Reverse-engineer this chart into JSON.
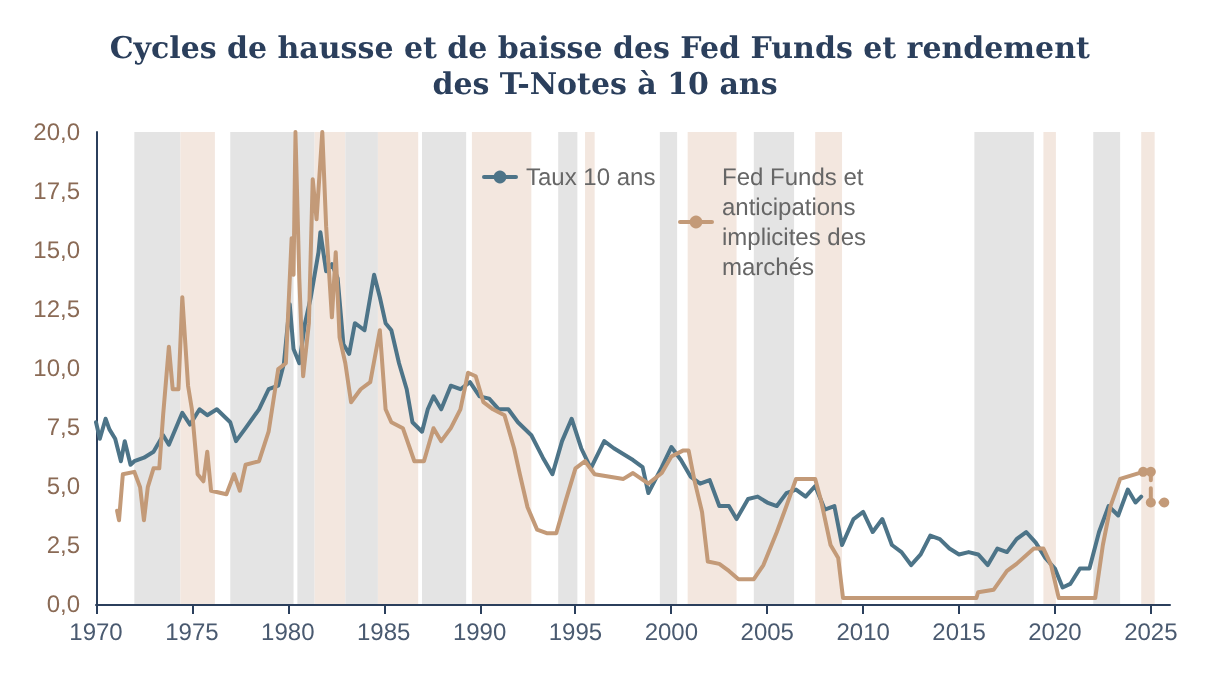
{
  "chart_data": {
    "type": "line",
    "title": "Cycles de hausse et de baisse des Fed Funds et rendement des T-Notes à 10 ans",
    "xlim": [
      1970,
      2026
    ],
    "xticks": [
      1970,
      1975,
      1980,
      1985,
      1990,
      1995,
      2000,
      2005,
      2010,
      2015,
      2020,
      2025
    ],
    "ylim": [
      0,
      20
    ],
    "yticks": [
      {
        "value": 0,
        "label": "0,0"
      },
      {
        "value": 2.5,
        "label": "2,5"
      },
      {
        "value": 5,
        "label": "5,0"
      },
      {
        "value": 7.5,
        "label": "7,5"
      },
      {
        "value": 10,
        "label": "10,0"
      },
      {
        "value": 12.5,
        "label": "12,5"
      },
      {
        "value": 15,
        "label": "15,0"
      },
      {
        "value": 17.5,
        "label": "17,5"
      },
      {
        "value": 20,
        "label": "20,0"
      }
    ],
    "grid": false,
    "legend": "top right",
    "marker": "none",
    "line_style": "solid",
    "bands": [
      {
        "axis": "x",
        "from": 1972.0,
        "to": 1974.4,
        "color": "#e4e4e4"
      },
      {
        "axis": "x",
        "from": 1974.4,
        "to": 1976.2,
        "color": "#f3e7df"
      },
      {
        "axis": "x",
        "from": 1977.0,
        "to": 1980.3,
        "color": "#e4e4e4"
      },
      {
        "axis": "x",
        "from": 1980.5,
        "to": 1981.4,
        "color": "#e4e4e4"
      },
      {
        "axis": "x",
        "from": 1981.4,
        "to": 1983.0,
        "color": "#f3e7df"
      },
      {
        "axis": "x",
        "from": 1983.0,
        "to": 1984.7,
        "color": "#e4e4e4"
      },
      {
        "axis": "x",
        "from": 1984.7,
        "to": 1986.8,
        "color": "#f3e7df"
      },
      {
        "axis": "x",
        "from": 1987.0,
        "to": 1989.3,
        "color": "#e4e4e4"
      },
      {
        "axis": "x",
        "from": 1989.6,
        "to": 1992.7,
        "color": "#f3e7df"
      },
      {
        "axis": "x",
        "from": 1994.1,
        "to": 1995.1,
        "color": "#e4e4e4"
      },
      {
        "axis": "x",
        "from": 1995.5,
        "to": 1996.0,
        "color": "#f3e7df"
      },
      {
        "axis": "x",
        "from": 1999.4,
        "to": 2000.3,
        "color": "#e4e4e4"
      },
      {
        "axis": "x",
        "from": 2000.85,
        "to": 2003.4,
        "color": "#f3e7df"
      },
      {
        "axis": "x",
        "from": 2004.3,
        "to": 2006.4,
        "color": "#e4e4e4"
      },
      {
        "axis": "x",
        "from": 2007.5,
        "to": 2008.9,
        "color": "#f3e7df"
      },
      {
        "axis": "x",
        "from": 2015.8,
        "to": 2018.9,
        "color": "#e4e4e4"
      },
      {
        "axis": "x",
        "from": 2019.4,
        "to": 2020.05,
        "color": "#f3e7df"
      },
      {
        "axis": "x",
        "from": 2022.0,
        "to": 2023.4,
        "color": "#e4e4e4"
      },
      {
        "axis": "x",
        "from": 2024.5,
        "to": 2025.2,
        "color": "#f3e7df"
      }
    ],
    "series": [
      {
        "name": "Taux 10 ans",
        "color": "#4d7488",
        "x": [
          1970.0,
          1970.2,
          1970.5,
          1970.7,
          1971.0,
          1971.3,
          1971.5,
          1971.8,
          1972.0,
          1972.5,
          1973.0,
          1973.5,
          1973.8,
          1974.5,
          1974.9,
          1975.4,
          1975.8,
          1976.3,
          1977.0,
          1977.3,
          1977.8,
          1978.5,
          1979.0,
          1979.5,
          1979.8,
          1980.1,
          1980.3,
          1980.6,
          1980.9,
          1981.2,
          1981.6,
          1981.7,
          1982.0,
          1982.3,
          1982.6,
          1982.9,
          1983.2,
          1983.5,
          1984.0,
          1984.5,
          1984.8,
          1985.1,
          1985.4,
          1985.8,
          1986.2,
          1986.5,
          1987.0,
          1987.3,
          1987.6,
          1988.0,
          1988.5,
          1989.0,
          1989.5,
          1990.0,
          1990.5,
          1991.0,
          1991.5,
          1992.0,
          1992.7,
          1993.3,
          1993.8,
          1994.3,
          1994.8,
          1995.3,
          1995.8,
          1996.5,
          1997.0,
          1998.0,
          1998.5,
          1998.8,
          1999.5,
          2000.0,
          2000.5,
          2001.0,
          2001.5,
          2002.0,
          2002.5,
          2003.0,
          2003.4,
          2004.0,
          2004.5,
          2005.0,
          2005.5,
          2006.0,
          2006.5,
          2007.0,
          2007.5,
          2008.0,
          2008.5,
          2008.9,
          2009.5,
          2010.0,
          2010.5,
          2011.0,
          2011.5,
          2012.0,
          2012.5,
          2013.0,
          2013.5,
          2014.0,
          2014.5,
          2015.0,
          2015.5,
          2016.0,
          2016.5,
          2017.0,
          2017.5,
          2018.0,
          2018.5,
          2019.0,
          2019.5,
          2020.0,
          2020.4,
          2020.8,
          2021.3,
          2021.8,
          2022.3,
          2022.8,
          2023.3,
          2023.8,
          2024.2,
          2024.5
        ],
        "values": [
          7.7,
          7.0,
          7.85,
          7.4,
          7.0,
          6.05,
          6.9,
          5.9,
          6.05,
          6.2,
          6.45,
          7.15,
          6.75,
          8.1,
          7.6,
          8.25,
          8.0,
          8.25,
          7.7,
          6.9,
          7.45,
          8.25,
          9.1,
          9.25,
          10.2,
          12.7,
          10.8,
          10.2,
          11.9,
          13.0,
          14.9,
          15.75,
          14.1,
          14.4,
          13.8,
          11.0,
          10.6,
          11.9,
          11.6,
          13.95,
          13.0,
          11.9,
          11.6,
          10.2,
          9.1,
          7.7,
          7.3,
          8.25,
          8.8,
          8.25,
          9.25,
          9.1,
          9.4,
          8.8,
          8.7,
          8.25,
          8.25,
          7.7,
          7.15,
          6.2,
          5.5,
          6.9,
          7.85,
          6.6,
          5.75,
          6.9,
          6.6,
          6.1,
          5.8,
          4.7,
          5.8,
          6.65,
          6.1,
          5.4,
          5.1,
          5.25,
          4.15,
          4.15,
          3.6,
          4.45,
          4.55,
          4.3,
          4.15,
          4.7,
          4.85,
          4.55,
          5.0,
          4.0,
          4.15,
          2.5,
          3.6,
          3.9,
          3.05,
          3.6,
          2.5,
          2.2,
          1.65,
          2.1,
          2.9,
          2.75,
          2.35,
          2.1,
          2.2,
          2.1,
          1.65,
          2.35,
          2.2,
          2.75,
          3.05,
          2.6,
          1.95,
          1.5,
          0.7,
          0.85,
          1.5,
          1.5,
          3.05,
          4.15,
          3.75,
          4.85,
          4.3,
          4.55
        ]
      },
      {
        "name": "Fed Funds et anticipations implicites des marchés",
        "color": "#c39a78",
        "x": [
          1971.1,
          1971.2,
          1971.4,
          1972.0,
          1972.3,
          1972.5,
          1972.7,
          1973.0,
          1973.3,
          1973.5,
          1973.8,
          1974.0,
          1974.3,
          1974.5,
          1974.8,
          1975.0,
          1975.3,
          1975.6,
          1975.8,
          1976.0,
          1976.8,
          1977.2,
          1977.5,
          1977.8,
          1978.5,
          1979.0,
          1979.5,
          1979.9,
          1980.2,
          1980.3,
          1980.4,
          1980.6,
          1980.8,
          1981.1,
          1981.3,
          1981.5,
          1981.8,
          1982.0,
          1982.3,
          1982.5,
          1982.7,
          1983.0,
          1983.3,
          1983.8,
          1984.3,
          1984.8,
          1985.1,
          1985.4,
          1986.0,
          1986.6,
          1987.1,
          1987.6,
          1988.0,
          1988.5,
          1989.0,
          1989.4,
          1989.8,
          1990.2,
          1990.7,
          1991.3,
          1991.8,
          1992.1,
          1992.5,
          1993.0,
          1993.5,
          1994.0,
          1994.5,
          1995.0,
          1995.5,
          1996.0,
          1997.5,
          1998.0,
          1998.8,
          1999.5,
          2000.0,
          2000.6,
          2000.9,
          2001.2,
          2001.6,
          2001.9,
          2002.5,
          2003.0,
          2003.5,
          2004.3,
          2004.8,
          2005.5,
          2006.0,
          2006.5,
          2007.5,
          2007.8,
          2008.3,
          2008.7,
          2008.95,
          2015.9,
          2016.0,
          2016.8,
          2017.5,
          2018.0,
          2018.9,
          2019.4,
          2019.8,
          2020.2,
          2022.1,
          2022.5,
          2022.9,
          2023.4,
          2024.6
        ],
        "values": [
          3.95,
          3.55,
          5.5,
          5.6,
          4.95,
          3.55,
          4.95,
          5.75,
          5.75,
          8.0,
          10.9,
          9.1,
          9.1,
          13.0,
          9.25,
          8.25,
          5.5,
          5.2,
          6.45,
          4.8,
          4.65,
          5.5,
          4.8,
          5.9,
          6.05,
          7.3,
          9.95,
          10.2,
          15.5,
          13.95,
          20.0,
          13.8,
          9.65,
          11.9,
          18.0,
          16.3,
          20.0,
          16.0,
          12.15,
          14.9,
          11.3,
          10.2,
          8.55,
          9.1,
          9.4,
          11.6,
          8.25,
          7.7,
          7.45,
          6.05,
          6.05,
          7.45,
          6.9,
          7.45,
          8.25,
          9.8,
          9.65,
          8.55,
          8.25,
          8.0,
          6.6,
          5.5,
          4.1,
          3.15,
          3.0,
          3.0,
          4.4,
          5.75,
          6.05,
          5.5,
          5.3,
          5.55,
          5.1,
          5.55,
          6.25,
          6.5,
          6.5,
          5.25,
          3.9,
          1.8,
          1.7,
          1.4,
          1.05,
          1.05,
          1.65,
          3.05,
          4.15,
          5.3,
          5.3,
          4.4,
          2.5,
          1.95,
          0.25,
          0.25,
          0.5,
          0.6,
          1.4,
          1.7,
          2.35,
          2.35,
          1.65,
          0.25,
          0.25,
          2.5,
          4.15,
          5.3,
          5.6
        ]
      },
      {
        "color": "#c39a78",
        "line_style": "dashed",
        "marker": "circle",
        "x": [
          2024.6,
          2025.0,
          2025.0,
          2025.7
        ],
        "values": [
          5.6,
          5.6,
          4.3,
          4.3
        ]
      }
    ]
  }
}
